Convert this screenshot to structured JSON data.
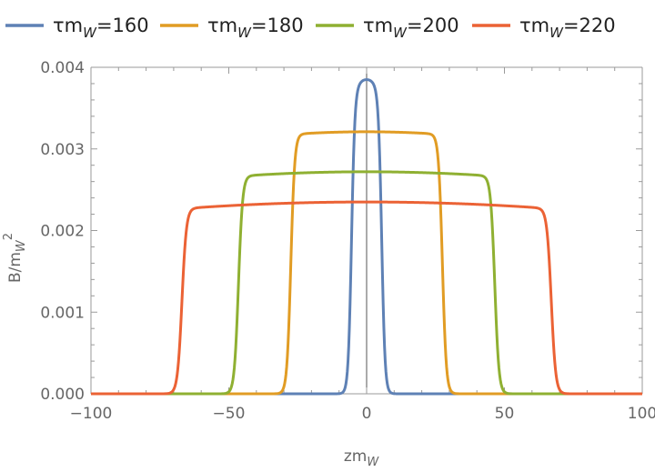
{
  "chart_data": {
    "type": "line",
    "title": "",
    "xlabel": {
      "base": "zm",
      "sub": "W"
    },
    "ylabel": {
      "base": "B/m",
      "sub": "W",
      "sup": "2"
    },
    "xlim": [
      -100,
      100
    ],
    "ylim": [
      0,
      0.004
    ],
    "x_ticks": [
      -100,
      -50,
      0,
      50,
      100
    ],
    "x_tick_labels": [
      "−100",
      "−50",
      "0",
      "50",
      "100"
    ],
    "y_ticks": [
      0,
      0.001,
      0.002,
      0.003,
      0.004
    ],
    "y_tick_labels": [
      "0.000",
      "0.001",
      "0.002",
      "0.003",
      "0.004"
    ],
    "grid": false,
    "frame": true,
    "legend_position": "top",
    "series": [
      {
        "name": "τm_W=160",
        "legend": {
          "base": "τm",
          "sub": "W",
          "tail": "=160"
        },
        "color": "#5E81B5",
        "peak": 0.00385,
        "half_width": 5.5,
        "edge_width": 1.2,
        "curvature": 0.04
      },
      {
        "name": "τm_W=180",
        "legend": {
          "base": "τm",
          "sub": "W",
          "tail": "=180"
        },
        "color": "#E19C24",
        "peak": 0.00321,
        "half_width": 27.5,
        "edge_width": 1.4,
        "curvature": 0.01
      },
      {
        "name": "τm_W=200",
        "legend": {
          "base": "τm",
          "sub": "W",
          "tail": "=200"
        },
        "color": "#8FB032",
        "peak": 0.00272,
        "half_width": 46.5,
        "edge_width": 1.5,
        "curvature": 0.02
      },
      {
        "name": "τm_W=220",
        "legend": {
          "base": "τm",
          "sub": "W",
          "tail": "=220"
        },
        "color": "#EB6235",
        "peak": 0.00235,
        "half_width": 67.0,
        "edge_width": 1.6,
        "curvature": 0.035
      }
    ]
  }
}
